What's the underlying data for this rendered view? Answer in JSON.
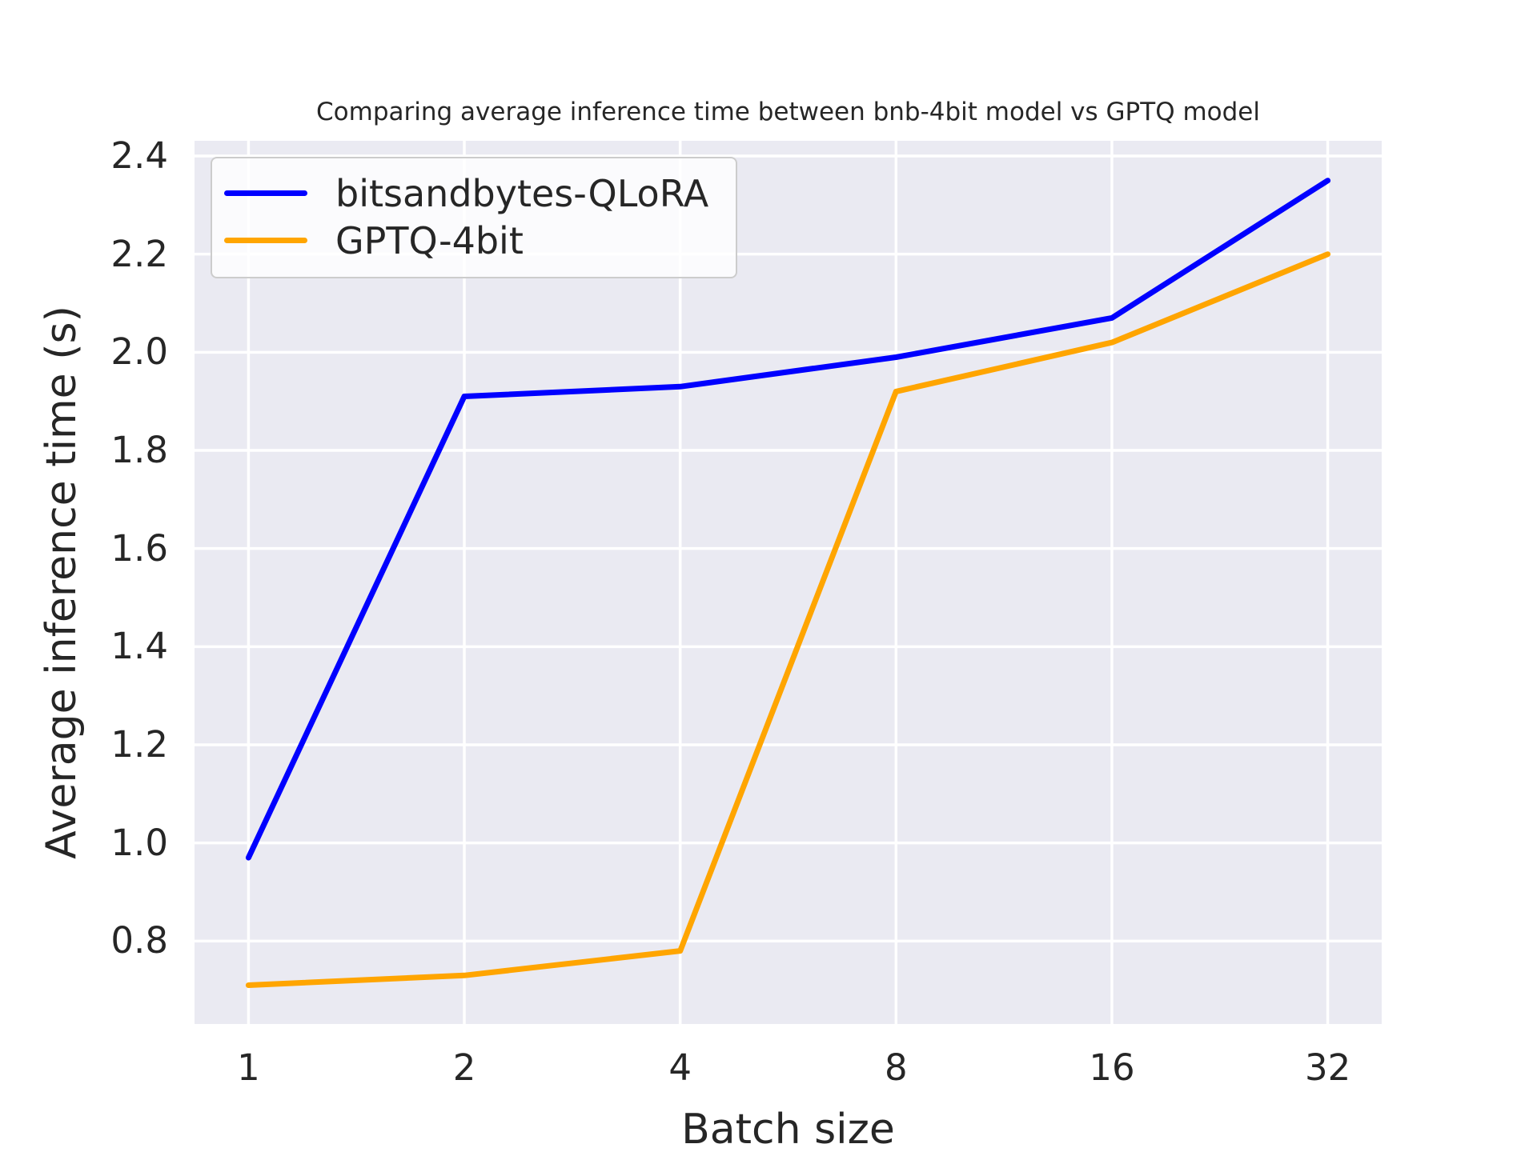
{
  "chart_data": {
    "type": "line",
    "title": "Comparing average inference time between bnb-4bit model vs GPTQ model",
    "xlabel": "Batch size",
    "ylabel": "Average inference time (s)",
    "x": [
      1,
      2,
      4,
      8,
      16,
      32
    ],
    "x_scale": "log2",
    "series": [
      {
        "name": "bitsandbytes-QLoRA",
        "color": "#0000ff",
        "values": [
          0.97,
          1.91,
          1.93,
          1.99,
          2.07,
          2.35
        ]
      },
      {
        "name": "GPTQ-4bit",
        "color": "#ffa500",
        "values": [
          0.71,
          0.73,
          0.78,
          1.92,
          2.02,
          2.2
        ]
      }
    ],
    "xticks": [
      1,
      2,
      4,
      8,
      16,
      32
    ],
    "yticks": [
      0.8,
      1.0,
      1.2,
      1.4,
      1.6,
      1.8,
      2.0,
      2.2,
      2.4
    ],
    "ylim": [
      0.631,
      2.431
    ],
    "xlim_log2": [
      -0.25,
      5.25
    ],
    "grid": true,
    "legend_position": "upper left",
    "plot_bg_color": "#eaeaf2",
    "grid_color": "#ffffff",
    "text_color": "#262626",
    "line_width": 7
  }
}
